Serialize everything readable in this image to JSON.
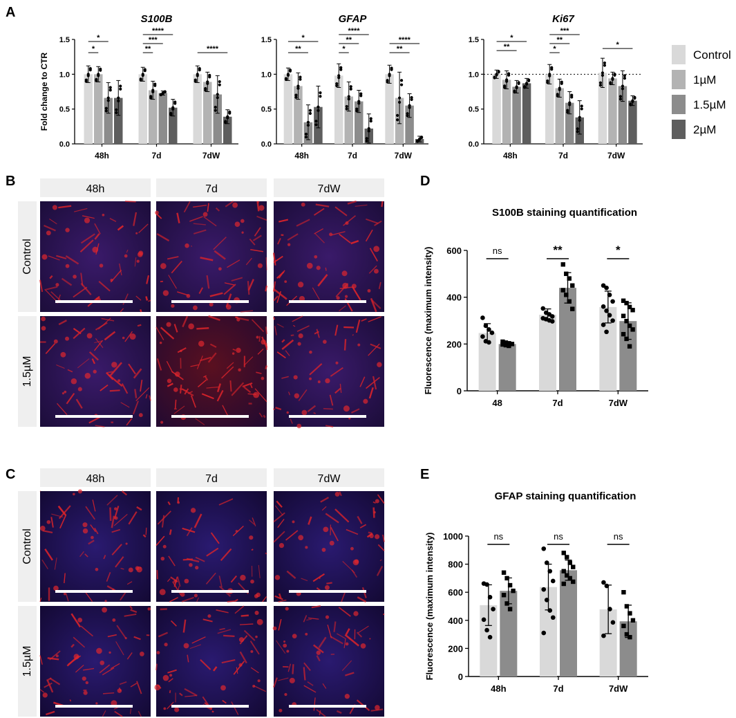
{
  "panel_letters": [
    "A",
    "B",
    "C",
    "D",
    "E"
  ],
  "colors": {
    "control": "#d9d9d9",
    "c1": "#b3b3b3",
    "c15": "#8c8c8c",
    "c2": "#5e5e5e",
    "img_header": "#efefef",
    "img_bg": "#1a1040",
    "scale_bar": "#ffffff"
  },
  "legend": {
    "items": [
      {
        "label": "Control",
        "color": "#d9d9d9"
      },
      {
        "label": "1µM",
        "color": "#b3b3b3"
      },
      {
        "label": "1.5µM",
        "color": "#8c8c8c"
      },
      {
        "label": "2µM",
        "color": "#5e5e5e"
      }
    ]
  },
  "panel_b": {
    "columns": [
      "48h",
      "7d",
      "7dW"
    ],
    "rows": [
      "Control",
      "1.5µM"
    ]
  },
  "panel_c": {
    "columns": [
      "48h",
      "7d",
      "7dW"
    ],
    "rows": [
      "Control",
      "1.5µM"
    ]
  },
  "chart_data": [
    {
      "type": "bar",
      "panel": "A",
      "title": "S100B",
      "ylabel": "Fold change to CTR",
      "ylim": [
        0,
        1.5
      ],
      "yticks": [
        "0.0",
        "0.5",
        "1.0",
        "1.5"
      ],
      "categories": [
        "48h",
        "7d",
        "7dW"
      ],
      "series": [
        {
          "name": "Control",
          "values": [
            1.0,
            1.0,
            1.0
          ],
          "err": [
            0.12,
            0.1,
            0.12
          ]
        },
        {
          "name": "1µM",
          "values": [
            1.0,
            0.77,
            0.89
          ],
          "err": [
            0.11,
            0.13,
            0.14
          ]
        },
        {
          "name": "1.5µM",
          "values": [
            0.66,
            0.73,
            0.71
          ],
          "err": [
            0.22,
            0.03,
            0.27
          ]
        },
        {
          "name": "2µM",
          "values": [
            0.66,
            0.52,
            0.39
          ],
          "err": [
            0.25,
            0.12,
            0.1
          ]
        }
      ],
      "significance": [
        {
          "label": "*",
          "group": 0,
          "from": 0,
          "to": 2,
          "y": 1.47
        },
        {
          "label": "*",
          "group": 0,
          "from": 0,
          "to": 1,
          "y": 1.31
        },
        {
          "label": "****",
          "group": 1,
          "from": 0,
          "to": 3,
          "y": 1.57
        },
        {
          "label": "***",
          "group": 1,
          "from": 0,
          "to": 2,
          "y": 1.44
        },
        {
          "label": "**",
          "group": 1,
          "from": 0,
          "to": 1,
          "y": 1.31
        },
        {
          "label": "****",
          "group": 2,
          "from": 0,
          "to": 3,
          "y": 1.31
        }
      ]
    },
    {
      "type": "bar",
      "panel": "A",
      "title": "GFAP",
      "ylabel": "",
      "ylim": [
        0,
        1.5
      ],
      "yticks": [
        "0.0",
        "0.5",
        "1.0",
        "1.5"
      ],
      "categories": [
        "48h",
        "7d",
        "7dW"
      ],
      "series": [
        {
          "name": "Control",
          "values": [
            1.0,
            0.98,
            1.0
          ],
          "err": [
            0.09,
            0.17,
            0.13
          ]
        },
        {
          "name": "1µM",
          "values": [
            0.83,
            0.68,
            0.66
          ],
          "err": [
            0.19,
            0.21,
            0.37
          ]
        },
        {
          "name": "1.5µM",
          "values": [
            0.31,
            0.61,
            0.55
          ],
          "err": [
            0.25,
            0.16,
            0.17
          ]
        },
        {
          "name": "2µM",
          "values": [
            0.53,
            0.22,
            0.07
          ],
          "err": [
            0.3,
            0.21,
            0.04
          ]
        }
      ],
      "significance": [
        {
          "label": "*",
          "group": 0,
          "from": 0,
          "to": 3,
          "y": 1.47
        },
        {
          "label": "**",
          "group": 0,
          "from": 0,
          "to": 2,
          "y": 1.31
        },
        {
          "label": "****",
          "group": 1,
          "from": 0,
          "to": 3,
          "y": 1.57
        },
        {
          "label": "**",
          "group": 1,
          "from": 0,
          "to": 2,
          "y": 1.44
        },
        {
          "label": "*",
          "group": 1,
          "from": 0,
          "to": 1,
          "y": 1.31
        },
        {
          "label": "****",
          "group": 2,
          "from": 0,
          "to": 3,
          "y": 1.44
        },
        {
          "label": "**",
          "group": 2,
          "from": 0,
          "to": 2,
          "y": 1.31
        }
      ]
    },
    {
      "type": "bar",
      "panel": "A",
      "title": "Ki67",
      "ylabel": "",
      "ylim": [
        0,
        1.5
      ],
      "yticks": [
        "0.0",
        "0.5",
        "1.0",
        "1.5"
      ],
      "categories": [
        "48h",
        "7d",
        "7dW"
      ],
      "reference_line": 1.0,
      "series": [
        {
          "name": "Control",
          "values": [
            1.0,
            1.0,
            1.02
          ],
          "err": [
            0.06,
            0.14,
            0.21
          ]
        },
        {
          "name": "1µM",
          "values": [
            0.92,
            0.8,
            0.94
          ],
          "err": [
            0.13,
            0.13,
            0.09
          ]
        },
        {
          "name": "1.5µM",
          "values": [
            0.82,
            0.59,
            0.83
          ],
          "err": [
            0.09,
            0.16,
            0.22
          ]
        },
        {
          "name": "2µM",
          "values": [
            0.87,
            0.38,
            0.62
          ],
          "err": [
            0.07,
            0.24,
            0.07
          ]
        }
      ],
      "significance": [
        {
          "label": "*",
          "group": 0,
          "from": 0,
          "to": 3,
          "y": 1.47
        },
        {
          "label": "**",
          "group": 0,
          "from": 0,
          "to": 2,
          "y": 1.34
        },
        {
          "label": "***",
          "group": 1,
          "from": 0,
          "to": 3,
          "y": 1.57
        },
        {
          "label": "**",
          "group": 1,
          "from": 0,
          "to": 2,
          "y": 1.44
        },
        {
          "label": "*",
          "group": 1,
          "from": 0,
          "to": 1,
          "y": 1.31
        },
        {
          "label": "*",
          "group": 2,
          "from": 0,
          "to": 3,
          "y": 1.37
        }
      ]
    },
    {
      "type": "bar",
      "panel": "D",
      "title": "S100B staining quantification",
      "ylabel": "Fluorescence (maximum intensity)",
      "ylim": [
        0,
        600
      ],
      "yticks": [
        "0",
        "200",
        "400",
        "600"
      ],
      "categories": [
        "48",
        "7d",
        "7dW"
      ],
      "series": [
        {
          "name": "Control",
          "values": [
            247,
            325,
            358
          ],
          "err": [
            40,
            25,
            68
          ],
          "points": [
            [
              312,
              278,
              262,
              248,
              232,
              212,
              207
            ],
            [
              352,
              334,
              327,
              318,
              310,
              306,
              301,
              297
            ],
            [
              450,
              440,
              410,
              382,
              360,
              342,
              323,
              300,
              282,
              252
            ]
          ]
        },
        {
          "name": "1.5µM",
          "values": [
            200,
            440,
            298
          ],
          "err": [
            10,
            65,
            78
          ],
          "points": [
            [
              210,
              206,
              203,
              200,
              198,
              195,
              192
            ],
            [
              540,
              500,
              480,
              450,
              430,
              410,
              382,
              350
            ],
            [
              385,
              375,
              358,
              345,
              320,
              298,
              278,
              262,
              242,
              222,
              190
            ]
          ]
        }
      ],
      "significance": [
        "ns",
        "**",
        "*"
      ]
    },
    {
      "type": "bar",
      "panel": "E",
      "title": "GFAP staining quantification",
      "ylabel": "Fluorescence (maximum intensity)",
      "ylim": [
        0,
        1000
      ],
      "yticks": [
        "0",
        "200",
        "400",
        "600",
        "800",
        "1000"
      ],
      "categories": [
        "48h",
        "7d",
        "7dW"
      ],
      "series": [
        {
          "name": "Control",
          "values": [
            508,
            637,
            478
          ],
          "err": [
            145,
            163,
            173
          ],
          "points": [
            [
              662,
              655,
              565,
              480,
              405,
              330,
              280
            ],
            [
              910,
              810,
              750,
              680,
              620,
              545,
              470,
              420,
              310
            ],
            [
              670,
              645,
              480,
              385,
              290
            ]
          ]
        },
        {
          "name": "1.5µM",
          "values": [
            610,
            757,
            393
          ],
          "err": [
            92,
            72,
            115
          ],
          "points": [
            [
              740,
              700,
              650,
              610,
              580,
              520,
              480
            ],
            [
              880,
              850,
              810,
              780,
              750,
              720,
              700,
              675,
              660
            ],
            [
              600,
              500,
              450,
              400,
              360,
              300,
              280
            ]
          ]
        }
      ],
      "significance": [
        "ns",
        "ns",
        "ns"
      ]
    }
  ]
}
